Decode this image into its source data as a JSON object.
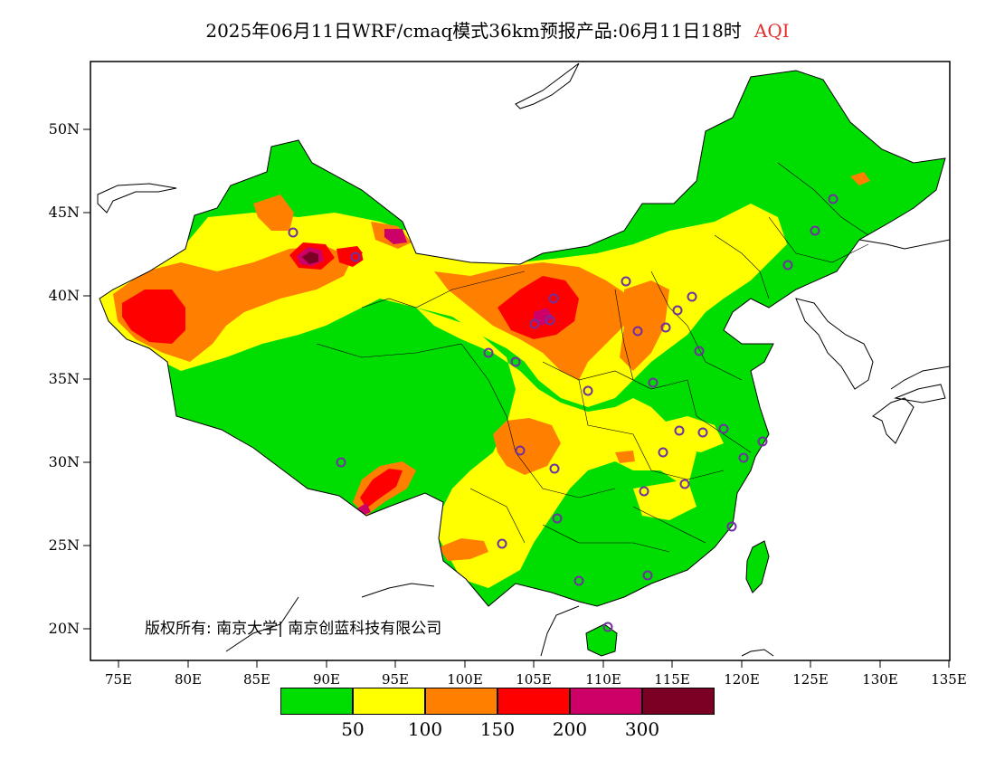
{
  "title": {
    "main": "2025年06月11日WRF/cmaq模式36km预报产品:06月11日18时",
    "highlight": "AQI"
  },
  "axes": {
    "lat_ticks": [
      "50N",
      "45N",
      "40N",
      "35N",
      "30N",
      "25N",
      "20N"
    ],
    "lon_ticks": [
      "75E",
      "80E",
      "85E",
      "90E",
      "95E",
      "100E",
      "105E",
      "110E",
      "115E",
      "120E",
      "125E",
      "130E",
      "135E"
    ]
  },
  "copyright": "版权所有: 南京大学| 南京创蓝科技有限公司",
  "legend": {
    "colors": [
      "#00dd00",
      "#ffff00",
      "#ff8000",
      "#ff0000",
      "#cc0066",
      "#7a0024"
    ],
    "labels": [
      "50",
      "100",
      "150",
      "200",
      "300"
    ]
  },
  "colors": {
    "good": "#00dd00",
    "moderate": "#ffff00",
    "light": "#ff8000",
    "medium": "#ff0000",
    "heavy": "#cc0066",
    "severe": "#7a0024",
    "station": "#7030a0"
  }
}
